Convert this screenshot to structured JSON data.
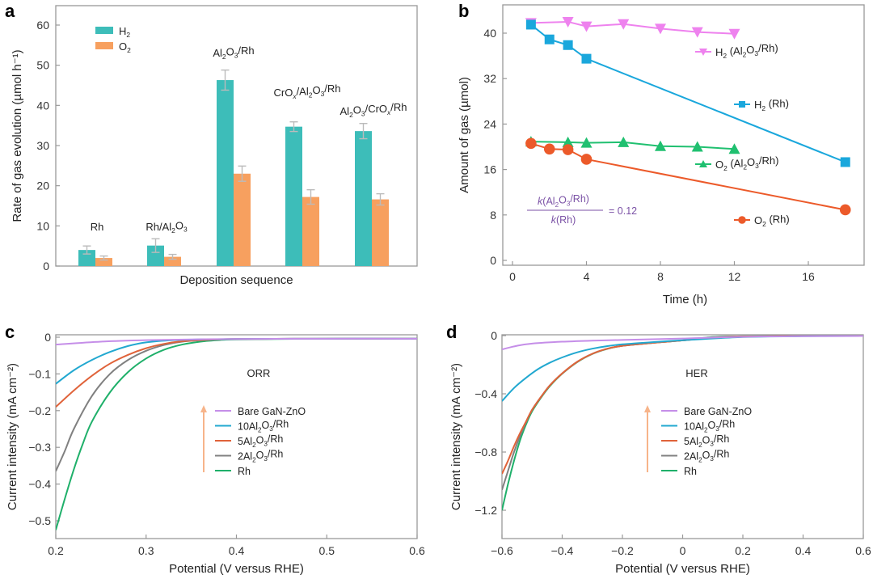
{
  "chart_data": [
    {
      "panel": "a",
      "type": "bar",
      "title": "",
      "xlabel": "Deposition sequence",
      "ylabel": "Rate of gas evolution (µmol h⁻¹)",
      "ylim": [
        0,
        65
      ],
      "yticks": [
        0,
        10,
        20,
        30,
        40,
        50,
        60
      ],
      "categories": [
        "Rh",
        "Rh/Al2O3",
        "Al2O3/Rh",
        "CrOx/Al2O3/Rh",
        "Al2O3/CrOx/Rh"
      ],
      "category_labels": [
        {
          "parts": [
            [
              "Rh",
              ""
            ]
          ]
        },
        {
          "parts": [
            [
              "Rh/Al",
              ""
            ],
            [
              "2",
              "sub"
            ],
            [
              "O",
              ""
            ],
            [
              "3",
              "sub"
            ]
          ]
        },
        {
          "parts": [
            [
              "Al",
              ""
            ],
            [
              "2",
              "sub"
            ],
            [
              "O",
              ""
            ],
            [
              "3",
              "sub"
            ],
            [
              "/Rh",
              ""
            ]
          ]
        },
        {
          "parts": [
            [
              "CrO",
              ""
            ],
            [
              "x",
              "subi"
            ],
            [
              "/Al",
              ""
            ],
            [
              "2",
              "sub"
            ],
            [
              "O",
              ""
            ],
            [
              "3",
              "sub"
            ],
            [
              "/Rh",
              ""
            ]
          ]
        },
        {
          "parts": [
            [
              "Al",
              ""
            ],
            [
              "2",
              "sub"
            ],
            [
              "O",
              ""
            ],
            [
              "3",
              "sub"
            ],
            [
              "/CrO",
              ""
            ],
            [
              "x",
              "subi"
            ],
            [
              "/Rh",
              ""
            ]
          ]
        }
      ],
      "series": [
        {
          "name": "H2",
          "color": "#3dbdb9",
          "values": [
            4.0,
            5.1,
            46.3,
            34.7,
            33.6
          ],
          "errors": [
            1.0,
            1.7,
            2.5,
            1.2,
            1.9
          ]
        },
        {
          "name": "O2",
          "color": "#f7a05f",
          "values": [
            2.0,
            2.3,
            23.0,
            17.2,
            16.6
          ],
          "errors": [
            0.5,
            0.6,
            1.9,
            1.8,
            1.4
          ]
        }
      ],
      "legend": {
        "placement": "top-left",
        "entries": [
          {
            "parts": [
              [
                "H",
                ""
              ],
              [
                "2",
                "sub"
              ]
            ]
          },
          {
            "parts": [
              [
                "O",
                ""
              ],
              [
                "2",
                "sub"
              ]
            ]
          }
        ]
      },
      "error_bar_color": "#bbbbbb",
      "grid": false
    },
    {
      "panel": "b",
      "type": "line",
      "title": "",
      "xlabel": "Time (h)",
      "ylabel": "Amount of gas (µmol)",
      "xlim": [
        -0.5,
        19.3
      ],
      "ylim": [
        -1.2,
        45.5
      ],
      "xticks": [
        0,
        4,
        8,
        12,
        16
      ],
      "yticks": [
        0,
        8,
        16,
        24,
        32,
        40
      ],
      "series": [
        {
          "name": "H2 (Al2O3/Rh)",
          "color": "#ee82ee",
          "marker": "triangle-down",
          "x": [
            1,
            3,
            4,
            6,
            8,
            10,
            12
          ],
          "y": [
            41.8,
            42.0,
            41.2,
            41.6,
            40.8,
            40.2,
            39.9
          ],
          "label_parts": [
            [
              "H",
              ""
            ],
            [
              "2",
              "sub"
            ],
            [
              " (Al",
              ""
            ],
            [
              "2",
              "sub"
            ],
            [
              "O",
              ""
            ],
            [
              "3",
              "sub"
            ],
            [
              "/Rh)",
              ""
            ]
          ]
        },
        {
          "name": "H2 (Rh)",
          "color": "#1aa7dc",
          "marker": "square",
          "x": [
            1,
            2,
            3,
            4,
            18
          ],
          "y": [
            41.5,
            38.9,
            37.9,
            35.5,
            17.3
          ],
          "label_parts": [
            [
              "H",
              ""
            ],
            [
              "2",
              "sub"
            ],
            [
              " (Rh)",
              ""
            ]
          ]
        },
        {
          "name": "O2 (Al2O3/Rh)",
          "color": "#20c070",
          "marker": "triangle-up",
          "x": [
            1,
            3,
            4,
            6,
            8,
            10,
            12
          ],
          "y": [
            20.9,
            20.8,
            20.7,
            20.8,
            20.1,
            20.0,
            19.6
          ],
          "label_parts": [
            [
              "O",
              ""
            ],
            [
              "2",
              "sub"
            ],
            [
              " (Al",
              ""
            ],
            [
              "2",
              "sub"
            ],
            [
              "O",
              ""
            ],
            [
              "3",
              "sub"
            ],
            [
              "/Rh)",
              ""
            ]
          ]
        },
        {
          "name": "O2 (Rh)",
          "color": "#ec5a2a",
          "marker": "circle",
          "x": [
            1,
            2,
            3,
            4,
            18
          ],
          "y": [
            20.6,
            19.6,
            19.5,
            17.8,
            8.9
          ],
          "label_parts": [
            [
              "O",
              ""
            ],
            [
              "2",
              "sub"
            ],
            [
              " (Rh)",
              ""
            ]
          ]
        }
      ],
      "annotation": {
        "numerator": "k(Al2O3/Rh)",
        "denominator": "k(Rh)",
        "value": "= 0.12",
        "color": "#7b52a6"
      },
      "grid": false
    },
    {
      "panel": "c",
      "type": "line",
      "title": "",
      "xlabel": "Potential (V versus RHE)",
      "ylabel": "Current intensity (mA cm⁻²)",
      "xlim": [
        0.2,
        0.6
      ],
      "ylim": [
        -0.55,
        0.005
      ],
      "xticks": [
        0.2,
        0.3,
        0.4,
        0.5,
        0.6
      ],
      "xtick_labels": [
        "0.2",
        "0.3",
        "0.4",
        "0.5",
        "0.6"
      ],
      "yticks": [
        0,
        -0.1,
        -0.2,
        -0.3,
        -0.4,
        -0.5
      ],
      "ytick_labels": [
        "0",
        "−0.1",
        "−0.2",
        "−0.3",
        "−0.4",
        "−0.5"
      ],
      "annotation": "ORR",
      "arrow_color": "#f7b48a",
      "series": [
        {
          "name": "Bare GaN-ZnO",
          "color": "#c58ee8",
          "x": [
            0.2,
            0.25,
            0.3,
            0.35,
            0.4,
            0.5,
            0.6
          ],
          "y": [
            -0.02,
            -0.012,
            -0.008,
            -0.006,
            -0.005,
            -0.004,
            -0.004
          ]
        },
        {
          "name": "10Al2O3/Rh",
          "color": "#22a8d0",
          "x": [
            0.2,
            0.22,
            0.24,
            0.26,
            0.28,
            0.3,
            0.33,
            0.36,
            0.4,
            0.5,
            0.6
          ],
          "y": [
            -0.127,
            -0.09,
            -0.062,
            -0.04,
            -0.024,
            -0.014,
            -0.008,
            -0.006,
            -0.005,
            -0.004,
            -0.004
          ]
        },
        {
          "name": "5Al2O3/Rh",
          "color": "#e0633a",
          "x": [
            0.2,
            0.22,
            0.24,
            0.26,
            0.28,
            0.3,
            0.32,
            0.34,
            0.37,
            0.4,
            0.5,
            0.6
          ],
          "y": [
            -0.19,
            -0.145,
            -0.105,
            -0.072,
            -0.048,
            -0.03,
            -0.018,
            -0.011,
            -0.007,
            -0.005,
            -0.004,
            -0.004
          ]
        },
        {
          "name": "2Al2O3/Rh",
          "color": "#808080",
          "x": [
            0.2,
            0.21,
            0.22,
            0.24,
            0.26,
            0.28,
            0.3,
            0.32,
            0.34,
            0.37,
            0.4,
            0.5,
            0.6
          ],
          "y": [
            -0.365,
            -0.31,
            -0.25,
            -0.16,
            -0.1,
            -0.062,
            -0.037,
            -0.021,
            -0.012,
            -0.007,
            -0.005,
            -0.004,
            -0.004
          ]
        },
        {
          "name": "Rh",
          "color": "#1fb06a",
          "x": [
            0.2,
            0.21,
            0.22,
            0.23,
            0.24,
            0.26,
            0.28,
            0.3,
            0.32,
            0.34,
            0.36,
            0.38,
            0.4,
            0.5,
            0.6
          ],
          "y": [
            -0.525,
            -0.44,
            -0.36,
            -0.29,
            -0.23,
            -0.15,
            -0.095,
            -0.058,
            -0.034,
            -0.02,
            -0.012,
            -0.008,
            -0.006,
            -0.004,
            -0.004
          ]
        }
      ],
      "legend_labels": [
        {
          "parts": [
            [
              "Bare GaN-ZnO",
              ""
            ]
          ]
        },
        {
          "parts": [
            [
              "10Al",
              ""
            ],
            [
              "2",
              "sub"
            ],
            [
              "O",
              ""
            ],
            [
              "3",
              "sub"
            ],
            [
              "/Rh",
              ""
            ]
          ]
        },
        {
          "parts": [
            [
              "5Al",
              ""
            ],
            [
              "2",
              "sub"
            ],
            [
              "O",
              ""
            ],
            [
              "3",
              "sub"
            ],
            [
              "/Rh",
              ""
            ]
          ]
        },
        {
          "parts": [
            [
              "2Al",
              ""
            ],
            [
              "2",
              "sub"
            ],
            [
              "O",
              ""
            ],
            [
              "3",
              "sub"
            ],
            [
              "/Rh",
              ""
            ]
          ]
        },
        {
          "parts": [
            [
              "Rh",
              ""
            ]
          ]
        }
      ],
      "grid": false
    },
    {
      "panel": "d",
      "type": "line",
      "title": "",
      "xlabel": "Potential (V versus RHE)",
      "ylabel": "Current intensity (mA cm⁻²)",
      "xlim": [
        -0.6,
        0.6
      ],
      "ylim": [
        -1.4,
        0.005
      ],
      "xticks": [
        -0.6,
        -0.4,
        -0.2,
        0,
        0.2,
        0.4,
        0.6
      ],
      "xtick_labels": [
        "−0.6",
        "−0.4",
        "−0.2",
        "0",
        "0.2",
        "0.4",
        "0.6"
      ],
      "yticks": [
        0,
        -0.4,
        -0.8,
        -1.2
      ],
      "ytick_labels": [
        "0",
        "−0.4",
        "−0.8",
        "−1.2"
      ],
      "annotation": "HER",
      "arrow_color": "#f7b48a",
      "series": [
        {
          "name": "Bare GaN-ZnO",
          "color": "#c58ee8",
          "x": [
            -0.6,
            -0.55,
            -0.5,
            -0.4,
            -0.3,
            -0.2,
            0,
            0.2,
            0.4,
            0.6
          ],
          "y": [
            -0.095,
            -0.07,
            -0.055,
            -0.042,
            -0.035,
            -0.03,
            -0.02,
            -0.008,
            -0.004,
            -0.003
          ]
        },
        {
          "name": "10Al2O3/Rh",
          "color": "#22a8d0",
          "x": [
            -0.6,
            -0.56,
            -0.52,
            -0.48,
            -0.44,
            -0.4,
            -0.35,
            -0.3,
            -0.25,
            -0.2,
            -0.1,
            0,
            0.2,
            0.4,
            0.6
          ],
          "y": [
            -0.45,
            -0.36,
            -0.29,
            -0.23,
            -0.185,
            -0.15,
            -0.115,
            -0.09,
            -0.072,
            -0.06,
            -0.045,
            -0.032,
            -0.01,
            -0.004,
            -0.003
          ]
        },
        {
          "name": "5Al2O3/Rh",
          "color": "#e0633a",
          "x": [
            -0.6,
            -0.58,
            -0.56,
            -0.54,
            -0.52,
            -0.5,
            -0.47,
            -0.44,
            -0.4,
            -0.35,
            -0.3,
            -0.25,
            -0.2,
            -0.1,
            0,
            0.1,
            0.2,
            0.4,
            0.6
          ],
          "y": [
            -0.95,
            -0.86,
            -0.76,
            -0.67,
            -0.59,
            -0.51,
            -0.42,
            -0.34,
            -0.26,
            -0.18,
            -0.125,
            -0.09,
            -0.07,
            -0.05,
            -0.033,
            -0.015,
            -0.006,
            -0.003,
            -0.003
          ]
        },
        {
          "name": "2Al2O3/Rh",
          "color": "#808080",
          "x": [
            -0.6,
            -0.58,
            -0.56,
            -0.54,
            -0.52,
            -0.5,
            -0.47,
            -0.44,
            -0.4,
            -0.35,
            -0.3,
            -0.25,
            -0.2,
            -0.1,
            0,
            0.1,
            0.2,
            0.4,
            0.6
          ],
          "y": [
            -1.06,
            -0.93,
            -0.8,
            -0.69,
            -0.595,
            -0.51,
            -0.42,
            -0.34,
            -0.26,
            -0.18,
            -0.125,
            -0.09,
            -0.07,
            -0.05,
            -0.033,
            -0.012,
            -0.005,
            -0.003,
            -0.003
          ]
        },
        {
          "name": "Rh",
          "color": "#1fb06a",
          "x": [
            -0.6,
            -0.58,
            -0.56,
            -0.54,
            -0.52,
            -0.5,
            -0.47,
            -0.44,
            -0.4,
            -0.35,
            -0.3,
            -0.25,
            -0.2,
            -0.1,
            0,
            0.1,
            0.2,
            0.4,
            0.6
          ],
          "y": [
            -1.2,
            -1.02,
            -0.86,
            -0.72,
            -0.61,
            -0.52,
            -0.425,
            -0.345,
            -0.262,
            -0.182,
            -0.126,
            -0.091,
            -0.07,
            -0.05,
            -0.033,
            -0.01,
            -0.005,
            -0.003,
            -0.003
          ]
        }
      ],
      "legend_labels": [
        {
          "parts": [
            [
              "Bare GaN-ZnO",
              ""
            ]
          ]
        },
        {
          "parts": [
            [
              "10Al",
              ""
            ],
            [
              "2",
              "sub"
            ],
            [
              "O",
              ""
            ],
            [
              "3",
              "sub"
            ],
            [
              "/Rh",
              ""
            ]
          ]
        },
        {
          "parts": [
            [
              "5Al",
              ""
            ],
            [
              "2",
              "sub"
            ],
            [
              "O",
              ""
            ],
            [
              "3",
              "sub"
            ],
            [
              "/Rh",
              ""
            ]
          ]
        },
        {
          "parts": [
            [
              "2Al",
              ""
            ],
            [
              "2",
              "sub"
            ],
            [
              "O",
              ""
            ],
            [
              "3",
              "sub"
            ],
            [
              "/Rh",
              ""
            ]
          ]
        },
        {
          "parts": [
            [
              "Rh",
              ""
            ]
          ]
        }
      ],
      "grid": false
    }
  ],
  "panel_labels": [
    "a",
    "b",
    "c",
    "d"
  ]
}
